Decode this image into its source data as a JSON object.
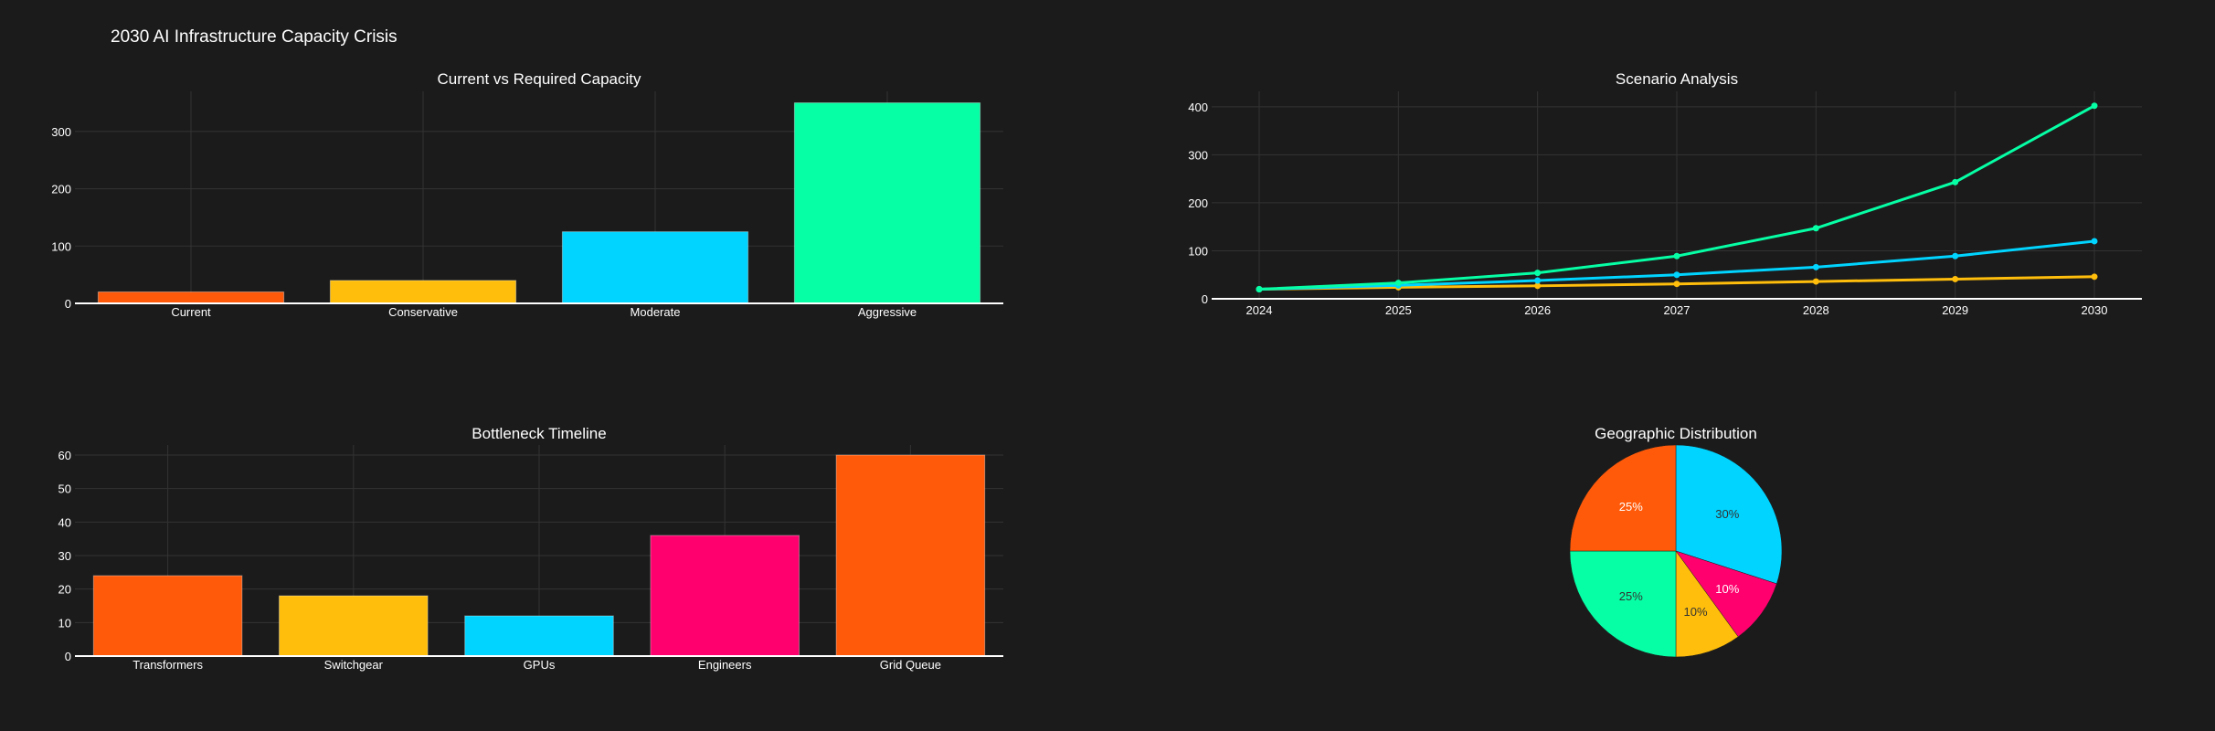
{
  "page": {
    "title": "2030 AI Infrastructure Capacity Crisis"
  },
  "colors": {
    "background": "#1b1b1b",
    "grid": "#333333",
    "axis": "#ffffff",
    "text": "#ffffff",
    "orange": "#ff5a0a",
    "yellow": "#ffbe0b",
    "cyan": "#00d4ff",
    "green": "#06ffa5",
    "magenta": "#ff006e"
  },
  "chart_data": [
    {
      "id": "capacity",
      "type": "bar",
      "title": "Current vs Required Capacity",
      "categories": [
        "Current",
        "Conservative",
        "Moderate",
        "Aggressive"
      ],
      "values": [
        20,
        40,
        125,
        350
      ],
      "colors": [
        "#ff5a0a",
        "#ffbe0b",
        "#00d4ff",
        "#06ffa5"
      ],
      "ylim": [
        0,
        370
      ],
      "yticks": [
        0,
        100,
        200,
        300
      ],
      "grid": true
    },
    {
      "id": "scenario",
      "type": "line",
      "title": "Scenario Analysis",
      "x": [
        "2024",
        "2025",
        "2026",
        "2027",
        "2028",
        "2029",
        "2030"
      ],
      "series": [
        {
          "color": "#06ffa5",
          "values": [
            20,
            33,
            54,
            89,
            147,
            243,
            402
          ]
        },
        {
          "color": "#00d4ff",
          "values": [
            20,
            28,
            38,
            50,
            66,
            89,
            120
          ]
        },
        {
          "color": "#ffbe0b",
          "values": [
            20,
            24,
            27,
            31,
            36,
            41,
            46
          ]
        }
      ],
      "ylim": [
        0,
        432
      ],
      "yticks": [
        0,
        100,
        200,
        300,
        400
      ],
      "grid": true
    },
    {
      "id": "bottleneck",
      "type": "bar",
      "title": "Bottleneck Timeline",
      "categories": [
        "Transformers",
        "Switchgear",
        "GPUs",
        "Engineers",
        "Grid Queue"
      ],
      "values": [
        24,
        18,
        12,
        36,
        60
      ],
      "colors": [
        "#ff5a0a",
        "#ffbe0b",
        "#00d4ff",
        "#ff006e",
        "#ff5a0a"
      ],
      "ylim": [
        0,
        63
      ],
      "yticks": [
        0,
        10,
        20,
        30,
        40,
        50,
        60
      ],
      "grid": true
    },
    {
      "id": "geo",
      "type": "pie",
      "title": "Geographic Distribution",
      "slices": [
        {
          "label": "30%",
          "value": 30,
          "color": "#00d4ff",
          "textColor": "#333333"
        },
        {
          "label": "10%",
          "value": 10,
          "color": "#ff006e",
          "textColor": "#ffffff"
        },
        {
          "label": "10%",
          "value": 10,
          "color": "#ffbe0b",
          "textColor": "#333333"
        },
        {
          "label": "25%",
          "value": 25,
          "color": "#06ffa5",
          "textColor": "#333333"
        },
        {
          "label": "25%",
          "value": 25,
          "color": "#ff5a0a",
          "textColor": "#ffffff"
        }
      ]
    }
  ]
}
